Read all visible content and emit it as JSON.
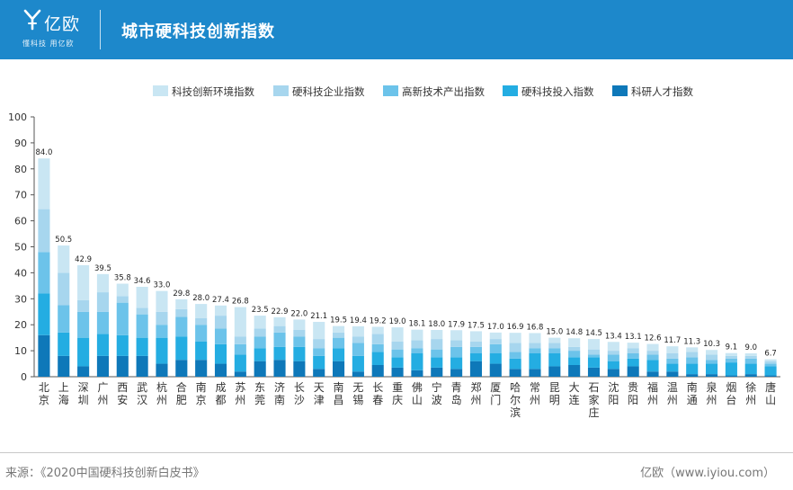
{
  "header": {
    "logo_text": "亿欧",
    "logo_sub": "懂科技 用亿欧",
    "title": "城市硬科技创新指数"
  },
  "footer": {
    "source": "来源：《2020中国硬科技创新白皮书》",
    "brand": "亿欧（www.iyiou.com）"
  },
  "colors": {
    "header_bg": "#1d88cb",
    "series": [
      "#c9e6f3",
      "#a7d6ee",
      "#6cc3ea",
      "#24ade2",
      "#0e78b9"
    ]
  },
  "chart_data": {
    "type": "bar",
    "stacked": true,
    "title": "",
    "xlabel": "",
    "ylabel": "",
    "ylim": [
      0,
      100
    ],
    "yticks": [
      0,
      10,
      20,
      30,
      40,
      50,
      60,
      70,
      80,
      90,
      100
    ],
    "legend_position": "top-right",
    "categories": [
      "北京",
      "上海",
      "深圳",
      "广州",
      "西安",
      "武汉",
      "杭州",
      "合肥",
      "南京",
      "成都",
      "苏州",
      "东莞",
      "济南",
      "长沙",
      "天津",
      "南昌",
      "无锡",
      "长春",
      "重庆",
      "佛山",
      "宁波",
      "青岛",
      "郑州",
      "厦门",
      "哈尔滨",
      "常州",
      "昆明",
      "大连",
      "石家庄",
      "沈阳",
      "贵阳",
      "福州",
      "温州",
      "南通",
      "泉州",
      "烟台",
      "徐州",
      "唐山"
    ],
    "totals": [
      84.0,
      50.5,
      42.9,
      39.5,
      35.8,
      34.6,
      33.0,
      29.8,
      28.0,
      27.4,
      26.8,
      23.5,
      22.9,
      22.0,
      21.1,
      19.5,
      19.4,
      19.2,
      19.0,
      18.1,
      18.0,
      17.9,
      17.5,
      17.0,
      16.9,
      16.8,
      15.0,
      14.8,
      14.5,
      13.4,
      13.1,
      12.6,
      11.7,
      11.3,
      10.3,
      9.1,
      9.0,
      6.7
    ],
    "series": [
      {
        "name": "科研人才指数",
        "values": [
          16.0,
          8.0,
          4.0,
          8.0,
          8.0,
          8.0,
          5.0,
          6.5,
          6.5,
          5.0,
          2.0,
          6.0,
          6.5,
          6.0,
          3.0,
          6.0,
          2.0,
          4.5,
          3.5,
          2.5,
          3.5,
          3.0,
          6.0,
          5.0,
          3.0,
          3.0,
          4.0,
          4.5,
          3.5,
          3.0,
          4.0,
          2.0,
          2.0,
          1.0,
          1.0,
          0.5,
          1.0,
          0.5
        ]
      },
      {
        "name": "硬科技投入指数",
        "values": [
          16.0,
          9.0,
          11.0,
          8.5,
          8.0,
          7.0,
          10.0,
          9.0,
          7.0,
          7.5,
          6.5,
          5.0,
          5.0,
          5.5,
          5.0,
          5.0,
          6.0,
          5.0,
          4.0,
          6.5,
          4.0,
          4.5,
          3.0,
          4.0,
          4.0,
          6.0,
          5.0,
          3.0,
          4.0,
          3.0,
          3.0,
          4.5,
          3.0,
          4.0,
          4.0,
          5.0,
          4.0,
          3.5
        ]
      },
      {
        "name": "高新技术产出指数",
        "values": [
          16.0,
          10.5,
          10.0,
          8.5,
          12.5,
          9.0,
          5.0,
          7.5,
          6.5,
          6.0,
          4.0,
          4.5,
          5.5,
          4.0,
          3.0,
          4.0,
          5.0,
          3.0,
          3.0,
          2.0,
          3.0,
          4.0,
          2.5,
          3.5,
          2.5,
          2.0,
          2.0,
          2.5,
          1.0,
          2.5,
          2.0,
          2.0,
          2.0,
          2.5,
          1.5,
          1.5,
          2.0,
          1.0
        ]
      },
      {
        "name": "硬科技企业指数",
        "values": [
          16.5,
          12.5,
          4.5,
          7.5,
          2.5,
          2.5,
          5.0,
          3.0,
          2.5,
          5.0,
          3.0,
          3.0,
          2.5,
          2.5,
          3.5,
          2.0,
          2.5,
          4.0,
          3.0,
          3.0,
          4.0,
          2.5,
          2.0,
          2.0,
          3.5,
          2.0,
          2.0,
          1.5,
          2.0,
          1.5,
          2.0,
          1.5,
          2.0,
          2.0,
          2.0,
          1.0,
          1.0,
          1.0
        ]
      },
      {
        "name": "科技创新环境指数",
        "values": [
          19.5,
          10.5,
          13.4,
          7.0,
          4.8,
          8.1,
          8.0,
          3.8,
          5.5,
          3.9,
          11.3,
          5.0,
          3.4,
          4.0,
          6.6,
          2.5,
          3.9,
          2.7,
          5.5,
          4.1,
          3.5,
          3.9,
          4.0,
          2.5,
          3.9,
          3.8,
          2.0,
          3.3,
          4.0,
          3.4,
          2.1,
          2.6,
          2.7,
          1.8,
          1.8,
          1.1,
          1.0,
          0.7
        ]
      }
    ],
    "legend_order": [
      "科技创新环境指数",
      "硬科技企业指数",
      "高新技术产出指数",
      "硬科技投入指数",
      "科研人才指数"
    ]
  }
}
